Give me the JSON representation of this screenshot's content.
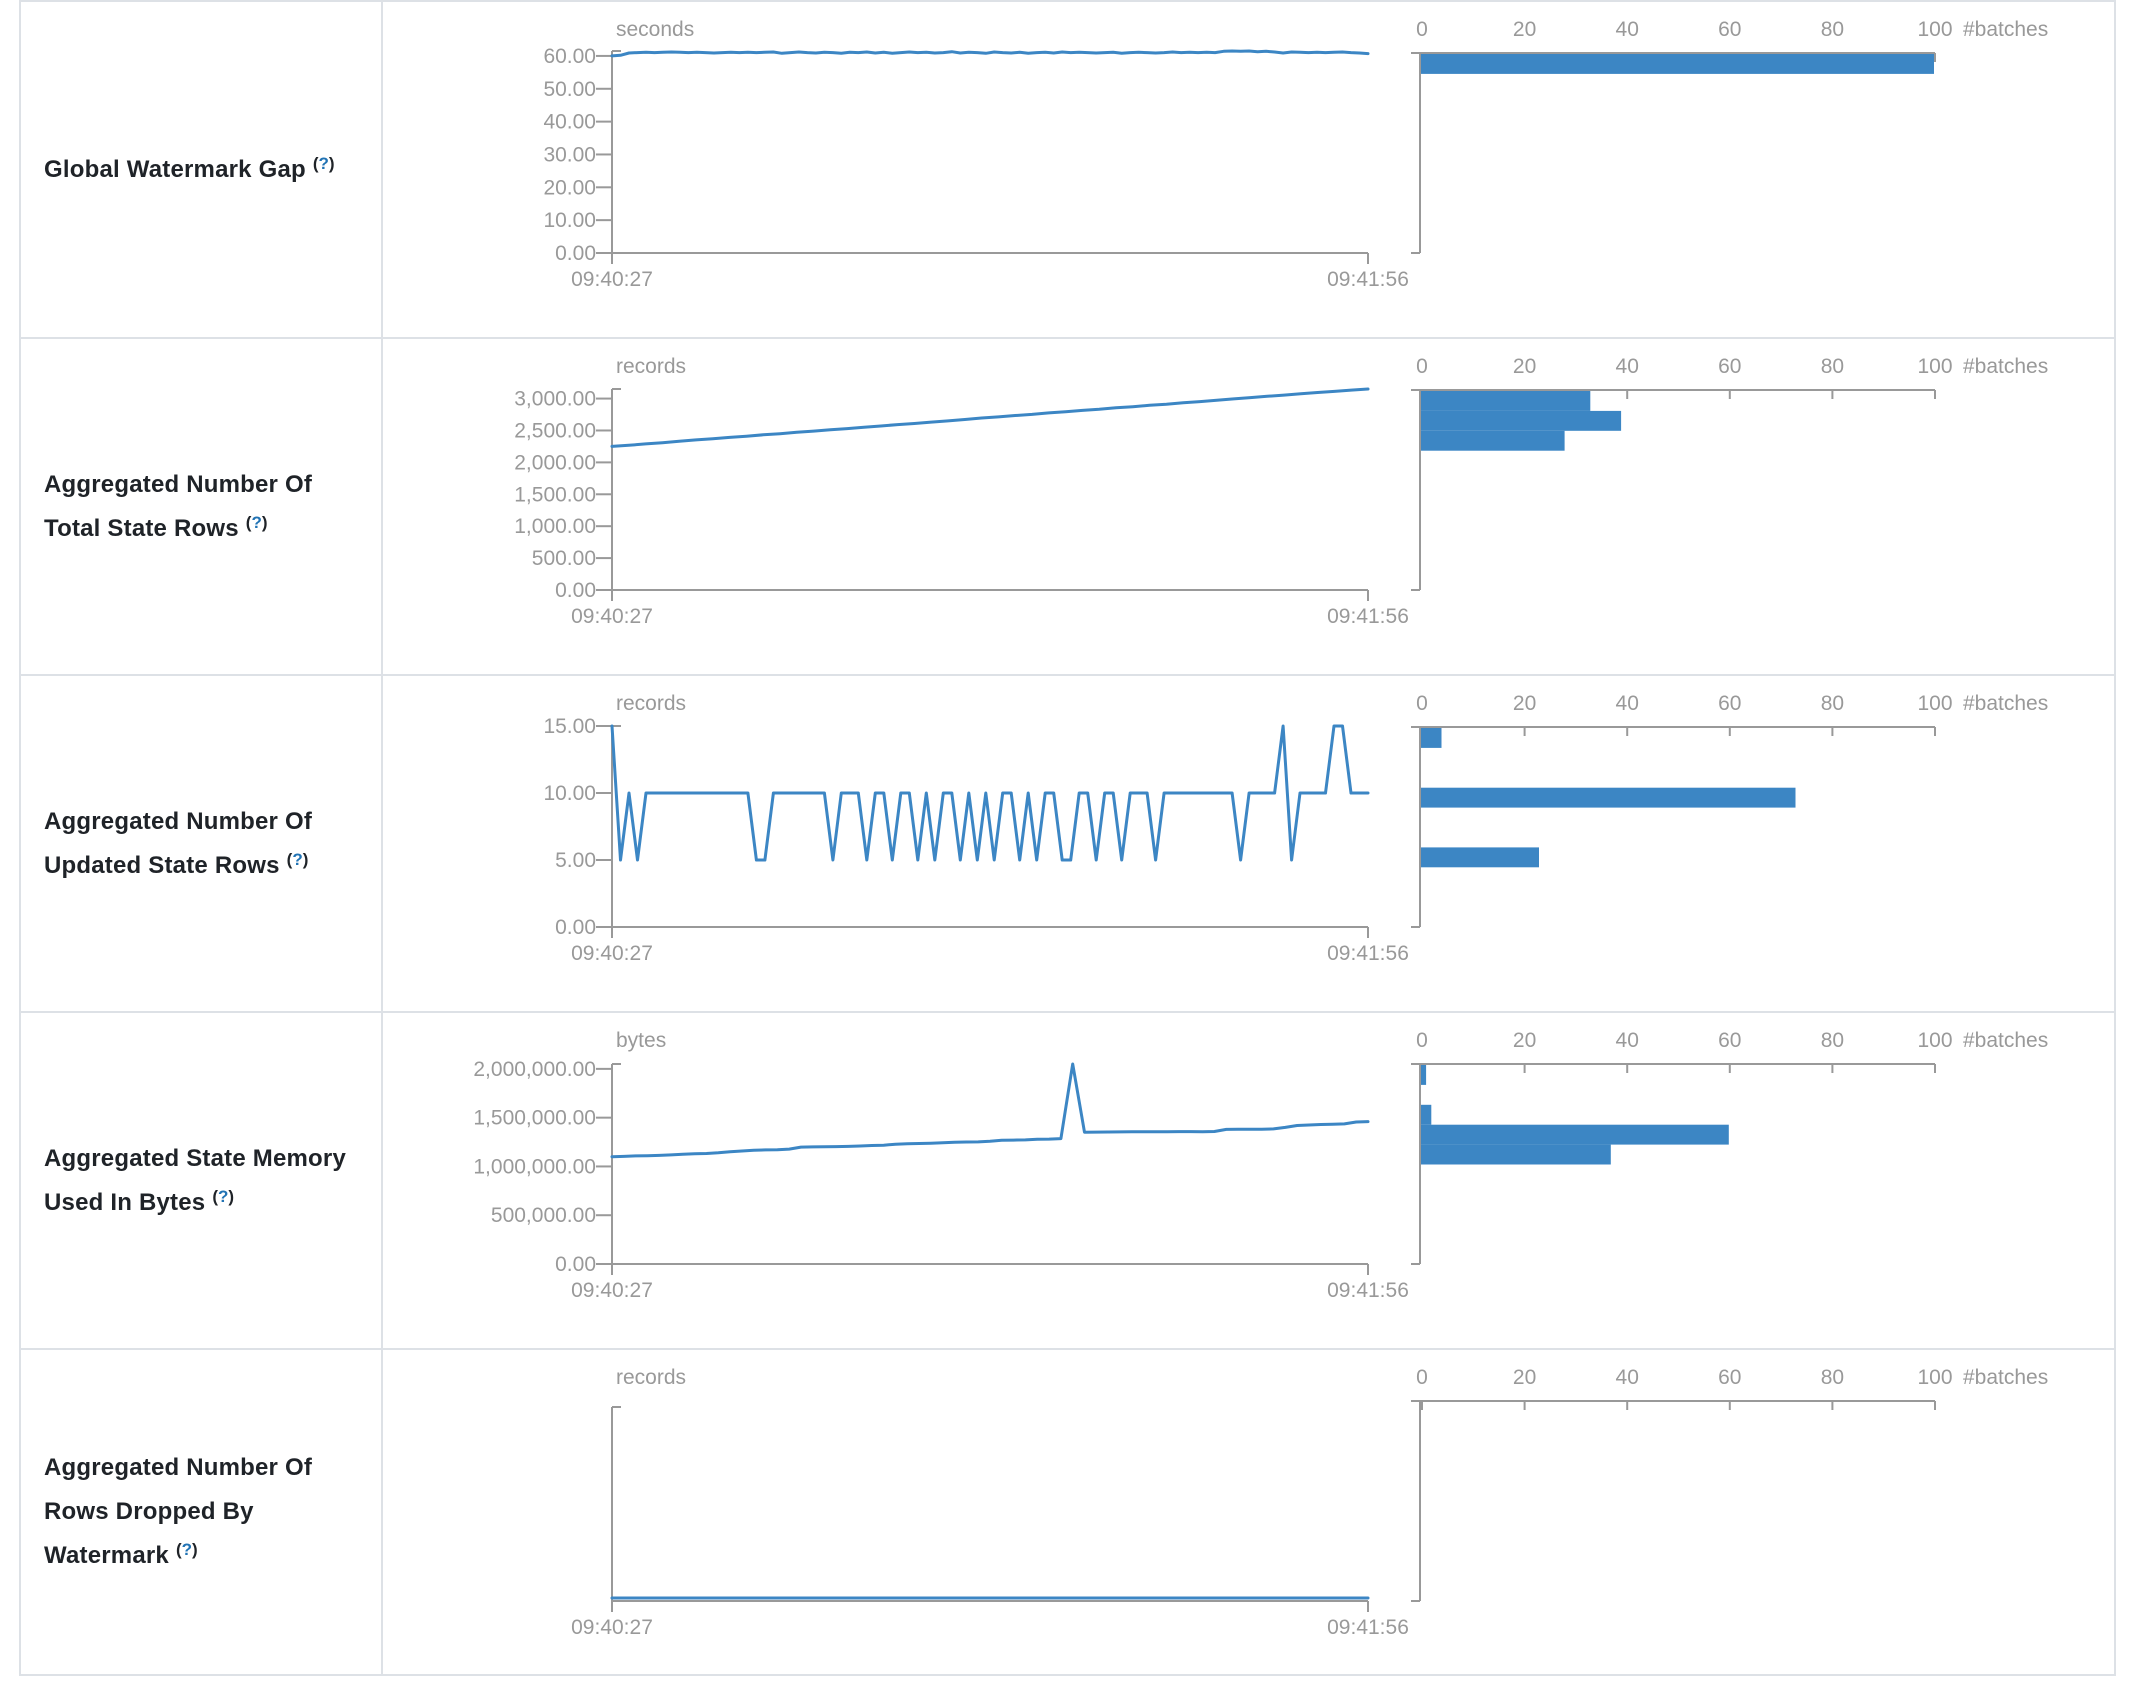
{
  "colors": {
    "accent_blue": "#3c86c4",
    "axis_grey": "#999999",
    "label_dark": "#1f2328",
    "border_grey": "#dde1e6",
    "help_blue": "#2173b4"
  },
  "help": {
    "open": "(",
    "q": "?",
    "close": ")"
  },
  "time_axis": {
    "start": "09:40:27",
    "end": "09:41:56"
  },
  "rows": [
    {
      "label": "Global Watermark Gap"
    },
    {
      "label": "Aggregated Number Of Total State Rows"
    },
    {
      "label": "Aggregated Number Of Updated State Rows"
    },
    {
      "label": "Aggregated State Memory Used In Bytes"
    },
    {
      "label": "Aggregated Number Of Rows Dropped By Watermark"
    }
  ],
  "chart_data": [
    {
      "type": "line",
      "metric": "Global Watermark Gap",
      "unit": "seconds",
      "x_start": "09:40:27",
      "x_end": "09:41:56",
      "ymax": 61.5,
      "yticks": [
        {
          "label": "60.00",
          "value": 60
        },
        {
          "label": "50.00",
          "value": 50
        },
        {
          "label": "40.00",
          "value": 40
        },
        {
          "label": "30.00",
          "value": 30
        },
        {
          "label": "20.00",
          "value": 20
        },
        {
          "label": "10.00",
          "value": 10
        },
        {
          "label": "0.00",
          "value": 0
        }
      ],
      "series": [
        60.0,
        60.2,
        60.9,
        61.0,
        61.1,
        61.0,
        61.1,
        61.2,
        61.1,
        61.0,
        61.1,
        61.0,
        60.9,
        61.0,
        61.1,
        61.0,
        61.1,
        61.0,
        61.1,
        61.2,
        60.8,
        61.0,
        61.2,
        61.0,
        60.9,
        61.1,
        61.0,
        60.8,
        61.1,
        61.0,
        61.2,
        60.9,
        61.1,
        60.8,
        61.0,
        61.2,
        61.0,
        61.1,
        60.9,
        61.0,
        61.3,
        60.9,
        61.1,
        61.0,
        60.8,
        61.2,
        61.0,
        60.9,
        61.1,
        60.8,
        61.0,
        61.1,
        60.9,
        61.2,
        61.0,
        61.1,
        61.0,
        60.9,
        61.0,
        61.1,
        60.8,
        61.0,
        61.1,
        61.0,
        60.9,
        61.0,
        61.2,
        61.0,
        61.1,
        61.0,
        61.1,
        61.0,
        61.4,
        61.5,
        61.4,
        61.5,
        61.3,
        61.4,
        61.2,
        60.9,
        61.2,
        61.1,
        61.0,
        61.1,
        61.0,
        61.1,
        61.2,
        61.0,
        60.9,
        60.7
      ],
      "histogram": {
        "type": "bar",
        "unit": "#batches",
        "ticks": [
          "0",
          "20",
          "40",
          "60",
          "80",
          "100"
        ],
        "xmax": 100,
        "bins": [
          {
            "bin": 0,
            "count": 100,
            "range": "~55.4-61.5 s"
          }
        ]
      }
    },
    {
      "type": "line",
      "metric": "Aggregated Number Of Total State Rows",
      "unit": "records",
      "x_start": "09:40:27",
      "x_end": "09:41:56",
      "ymax": 3150,
      "yticks": [
        {
          "label": "3,000.00",
          "value": 3000
        },
        {
          "label": "2,500.00",
          "value": 2500
        },
        {
          "label": "2,000.00",
          "value": 2000
        },
        {
          "label": "1,500.00",
          "value": 1500
        },
        {
          "label": "1,000.00",
          "value": 1000
        },
        {
          "label": "500.00",
          "value": 500
        },
        {
          "label": "0.00",
          "value": 0
        }
      ],
      "series": [
        2250,
        2268,
        2290,
        2308,
        2330,
        2352,
        2370,
        2392,
        2410,
        2432,
        2450,
        2472,
        2490,
        2512,
        2530,
        2552,
        2570,
        2592,
        2610,
        2632,
        2650,
        2672,
        2695,
        2712,
        2735,
        2752,
        2775,
        2792,
        2815,
        2832,
        2855,
        2872,
        2895,
        2912,
        2935,
        2952,
        2975,
        2995,
        3015,
        3035,
        3055,
        3075,
        3095,
        3112,
        3132,
        3150
      ],
      "histogram": {
        "type": "bar",
        "unit": "#batches",
        "ticks": [
          "0",
          "20",
          "40",
          "60",
          "80",
          "100"
        ],
        "xmax": 100,
        "bins": [
          {
            "bin": 0,
            "count": 33,
            "range": "~2,835-3,150"
          },
          {
            "bin": 1,
            "count": 39,
            "range": "~2,520-2,835"
          },
          {
            "bin": 2,
            "count": 28,
            "range": "~2,205-2,520"
          }
        ]
      }
    },
    {
      "type": "line",
      "metric": "Aggregated Number Of Updated State Rows",
      "unit": "records",
      "x_start": "09:40:27",
      "x_end": "09:41:56",
      "ymax": 15,
      "yticks": [
        {
          "label": "15.00",
          "value": 15
        },
        {
          "label": "10.00",
          "value": 10
        },
        {
          "label": "5.00",
          "value": 5
        },
        {
          "label": "0.00",
          "value": 0
        }
      ],
      "series": [
        15,
        5,
        10,
        5,
        10,
        10,
        10,
        10,
        10,
        10,
        10,
        10,
        10,
        10,
        10,
        10,
        10,
        5,
        5,
        10,
        10,
        10,
        10,
        10,
        10,
        10,
        5,
        10,
        10,
        10,
        5,
        10,
        10,
        5,
        10,
        10,
        5,
        10,
        5,
        10,
        10,
        5,
        10,
        5,
        10,
        5,
        10,
        10,
        5,
        10,
        5,
        10,
        10,
        5,
        5,
        10,
        10,
        5,
        10,
        10,
        5,
        10,
        10,
        10,
        5,
        10,
        10,
        10,
        10,
        10,
        10,
        10,
        10,
        10,
        5,
        10,
        10,
        10,
        10,
        15,
        5,
        10,
        10,
        10,
        10,
        15,
        15,
        10,
        10,
        10
      ],
      "histogram": {
        "type": "bar",
        "unit": "#batches",
        "ticks": [
          "0",
          "20",
          "40",
          "60",
          "80",
          "100"
        ],
        "xmax": 100,
        "bins": [
          {
            "bin": 0,
            "count": 4,
            "range": "15"
          },
          {
            "bin": 3,
            "count": 73,
            "range": "10"
          },
          {
            "bin": 6,
            "count": 23,
            "range": "5"
          }
        ]
      }
    },
    {
      "type": "line",
      "metric": "Aggregated State Memory Used In Bytes",
      "unit": "bytes",
      "x_start": "09:40:27",
      "x_end": "09:41:56",
      "ymax": 2050000,
      "yticks": [
        {
          "label": "2,000,000.00",
          "value": 2000000
        },
        {
          "label": "1,500,000.00",
          "value": 1500000
        },
        {
          "label": "1,000,000.00",
          "value": 1000000
        },
        {
          "label": "500,000.00",
          "value": 500000
        },
        {
          "label": "0.00",
          "value": 0
        }
      ],
      "series": [
        1100000,
        1103000,
        1108000,
        1110000,
        1113000,
        1118000,
        1125000,
        1130000,
        1133000,
        1140000,
        1150000,
        1158000,
        1165000,
        1170000,
        1172000,
        1178000,
        1198000,
        1200000,
        1202000,
        1203000,
        1205000,
        1210000,
        1215000,
        1218000,
        1228000,
        1232000,
        1235000,
        1238000,
        1242000,
        1248000,
        1250000,
        1252000,
        1258000,
        1268000,
        1270000,
        1272000,
        1278000,
        1280000,
        1285000,
        2050000,
        1350000,
        1352000,
        1353000,
        1354000,
        1355000,
        1355000,
        1356000,
        1356000,
        1357000,
        1357000,
        1355000,
        1358000,
        1380000,
        1381000,
        1382000,
        1382000,
        1385000,
        1400000,
        1420000,
        1425000,
        1430000,
        1432000,
        1436000,
        1455000,
        1460000
      ],
      "histogram": {
        "type": "bar",
        "unit": "#batches",
        "ticks": [
          "0",
          "20",
          "40",
          "60",
          "80",
          "100"
        ],
        "xmax": 100,
        "bins": [
          {
            "bin": 0,
            "count": 1,
            "range": "~2,050,000"
          },
          {
            "bin": 2,
            "count": 2,
            "range": "~1,435,000-1,640,000"
          },
          {
            "bin": 3,
            "count": 60,
            "range": "~1,230,000-1,435,000"
          },
          {
            "bin": 4,
            "count": 37,
            "range": "~1,025,000-1,230,000"
          }
        ]
      }
    },
    {
      "type": "line",
      "metric": "Aggregated Number Of Rows Dropped By Watermark",
      "unit": "records",
      "x_start": "09:40:27",
      "x_end": "09:41:56",
      "ymax": 0,
      "yticks": [],
      "series": [
        0,
        0,
        0,
        0,
        0,
        0,
        0,
        0,
        0,
        0,
        0,
        0,
        0,
        0,
        0,
        0,
        0,
        0,
        0,
        0,
        0,
        0,
        0,
        0,
        0,
        0,
        0,
        0,
        0,
        0,
        0,
        0,
        0,
        0,
        0,
        0,
        0,
        0,
        0,
        0,
        0,
        0,
        0,
        0,
        0,
        0,
        0,
        0,
        0,
        0
      ],
      "histogram": {
        "type": "bar",
        "unit": "#batches",
        "ticks": [
          "0",
          "20",
          "40",
          "60",
          "80",
          "100"
        ],
        "xmax": 100,
        "bins": []
      }
    }
  ]
}
